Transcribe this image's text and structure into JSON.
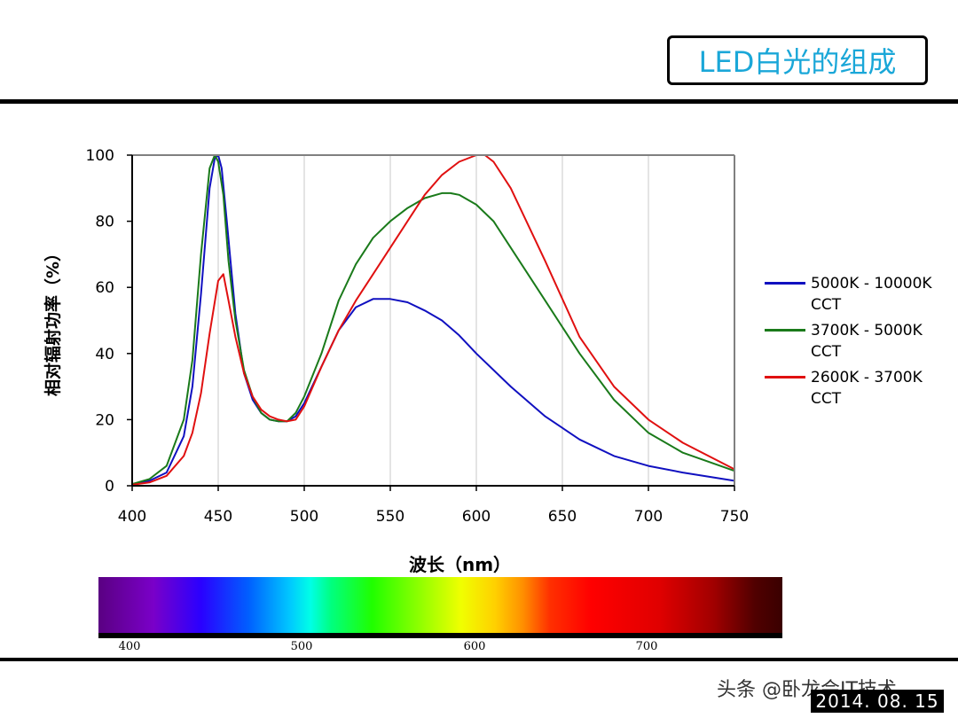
{
  "slide": {
    "title": "LED白光的组成"
  },
  "chart_data": {
    "type": "line",
    "title": "",
    "xlabel": "波长（nm）",
    "ylabel": "相对辐射功率（%）",
    "xlim": [
      400,
      750
    ],
    "ylim": [
      0,
      100
    ],
    "xticks": [
      400,
      450,
      500,
      550,
      600,
      650,
      700,
      750
    ],
    "yticks": [
      0,
      20,
      40,
      60,
      80,
      100
    ],
    "grid": "vertical",
    "legend_position": "right",
    "series": [
      {
        "name": "5000K - 10000K CCT",
        "color": "#1010c0",
        "x": [
          400,
          410,
          420,
          430,
          435,
          440,
          445,
          448,
          450,
          452,
          455,
          460,
          465,
          470,
          475,
          480,
          485,
          490,
          495,
          500,
          510,
          520,
          530,
          540,
          550,
          560,
          570,
          580,
          590,
          600,
          620,
          640,
          660,
          680,
          700,
          720,
          750
        ],
        "y": [
          0.5,
          1.5,
          4,
          15,
          30,
          58,
          90,
          99,
          100,
          96,
          80,
          52,
          34,
          26,
          22,
          20,
          19.5,
          19.5,
          21,
          25,
          36,
          47,
          54,
          56.5,
          56.5,
          55.5,
          53,
          50,
          45.5,
          40,
          30,
          21,
          14,
          9,
          6,
          4,
          1.5
        ]
      },
      {
        "name": "3700K - 5000K CCT",
        "color": "#1a7a1a",
        "x": [
          400,
          410,
          420,
          430,
          435,
          440,
          445,
          448,
          450,
          453,
          456,
          460,
          465,
          470,
          475,
          480,
          485,
          490,
          495,
          500,
          510,
          520,
          530,
          540,
          550,
          560,
          570,
          580,
          585,
          590,
          600,
          610,
          620,
          640,
          660,
          680,
          700,
          720,
          750
        ],
        "y": [
          0.5,
          2,
          6,
          20,
          38,
          70,
          96,
          100,
          98,
          88,
          68,
          50,
          35,
          27,
          22,
          20,
          19.5,
          19.5,
          22,
          27,
          40,
          56,
          67,
          75,
          80,
          84,
          87,
          88.5,
          88.5,
          88,
          85,
          80,
          72,
          56,
          40,
          26,
          16,
          10,
          4.5
        ]
      },
      {
        "name": "2600K - 3700K CCT",
        "color": "#e01010",
        "x": [
          400,
          410,
          420,
          430,
          435,
          440,
          445,
          450,
          453,
          456,
          460,
          465,
          470,
          475,
          480,
          485,
          490,
          495,
          500,
          510,
          520,
          530,
          540,
          550,
          560,
          570,
          580,
          590,
          600,
          605,
          610,
          620,
          640,
          660,
          680,
          700,
          720,
          750
        ],
        "y": [
          0.3,
          1,
          3,
          9,
          16,
          28,
          46,
          62,
          64,
          56,
          45,
          34,
          27,
          23,
          21,
          20,
          19.5,
          20,
          24,
          36,
          47,
          56,
          64,
          72,
          80,
          88,
          94,
          98,
          100,
          100,
          98,
          90,
          68,
          45,
          30,
          20,
          13,
          5
        ]
      }
    ]
  },
  "spectrum": {
    "ticks": [
      "400",
      "500",
      "600",
      "700"
    ]
  },
  "watermark": "头条 @卧龙会IT技术",
  "datestamp": "2014. 08. 15"
}
